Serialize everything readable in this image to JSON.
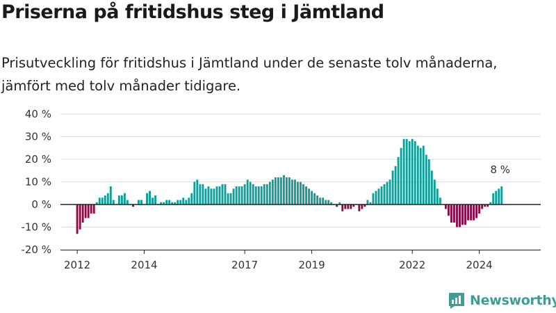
{
  "header": {
    "title": "Priserna på fritidshus steg i Jämtland",
    "subtitle": "Prisutveckling för fritidshus i Jämtland under de senaste tolv månaderna, jämfört med tolv månader tidigare."
  },
  "brand": {
    "name": "Newsworthy",
    "icon": "newsworthy-logo-icon",
    "color": "#3d9e99"
  },
  "colors": {
    "positive": "#0f9e98",
    "negative": "#8b0b46",
    "axis": "#222222",
    "grid": "#dddddd"
  },
  "chart_data": {
    "type": "bar",
    "title": "Priserna på fritidshus steg i Jämtland",
    "ylim": [
      -20,
      40
    ],
    "yticks": [
      -20,
      -10,
      0,
      10,
      20,
      30,
      40
    ],
    "ytick_format": "{v} %",
    "xticks": [
      "2012",
      "2014",
      "2017",
      "2019",
      "2022",
      "2024"
    ],
    "xlim_months": [
      "2011-07",
      "2025-11"
    ],
    "grid": true,
    "legend": "none",
    "annotation": {
      "text": "8 %",
      "at": "last"
    },
    "x_start": "2012-01",
    "values": [
      -13,
      -11,
      -8,
      -6,
      -6,
      -4,
      -4,
      1,
      3,
      3,
      4,
      5,
      8,
      2,
      0,
      4,
      4,
      5,
      2,
      0,
      -1,
      0,
      2,
      2,
      0,
      5,
      6,
      3,
      4,
      0,
      1,
      1,
      2,
      2,
      1,
      1,
      2,
      2,
      3,
      2,
      3,
      5,
      10,
      11,
      9,
      9,
      7,
      8,
      7,
      7,
      8,
      8,
      9,
      9,
      5,
      5,
      7,
      8,
      8,
      8,
      9,
      11,
      10,
      9,
      8,
      8,
      8,
      9,
      9,
      10,
      11,
      12,
      12,
      12,
      13,
      12,
      12,
      11,
      11,
      10,
      10,
      9,
      8,
      7,
      6,
      5,
      4,
      3,
      3,
      2,
      2,
      1,
      0,
      -1,
      1,
      -3,
      -2,
      -2,
      -2,
      -1,
      0,
      -3,
      -2,
      -1,
      2,
      1,
      5,
      6,
      7,
      8,
      9,
      10,
      11,
      15,
      17,
      21,
      25,
      29,
      29,
      28,
      29,
      28,
      26,
      25,
      26,
      22,
      20,
      15,
      11,
      7,
      3,
      0,
      -2,
      -5,
      -8,
      -8,
      -10,
      -10,
      -9,
      -9,
      -7,
      -7,
      -7,
      -6,
      -4,
      -2,
      -1,
      -1,
      1,
      5,
      6,
      7,
      8
    ]
  }
}
